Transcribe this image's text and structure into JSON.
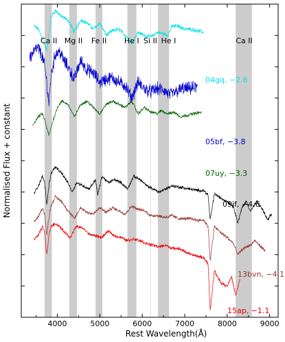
{
  "chart_data": {
    "type": "line",
    "xlabel": "Rest Wavelength(Å)",
    "ylabel": "Normalised Flux + constant",
    "xlim": [
      3150,
      9200
    ],
    "ylim": [
      0,
      10
    ],
    "xticks": [
      4000,
      5000,
      6000,
      7000,
      8000,
      9000
    ],
    "y_tick_labels": false,
    "grid": false,
    "line_annotations": [
      {
        "label": "Ca II",
        "x": 3800
      },
      {
        "label": "Mg II",
        "x": 4380
      },
      {
        "label": "Fe II",
        "x": 4980
      },
      {
        "label": "He I",
        "x": 5750
      },
      {
        "label": "Si II",
        "x": 6190
      },
      {
        "label": "He I",
        "x": 6620
      },
      {
        "label": "Ca II",
        "x": 8400
      }
    ],
    "shaded_bands": [
      [
        3700,
        3870
      ],
      [
        4280,
        4460
      ],
      [
        4900,
        5060
      ],
      [
        5650,
        5860
      ],
      [
        6370,
        6630
      ],
      [
        8200,
        8580
      ]
    ],
    "vline_x": 6200,
    "series": [
      {
        "name": "04gq, −2.6",
        "color": "#00e5e5",
        "noise": 0.05,
        "x": [
          3450,
          3550,
          3650,
          3750,
          3850,
          3950,
          4100,
          4250,
          4400,
          4550,
          4700,
          4850,
          5000,
          5150,
          5300,
          5450,
          5600,
          5750,
          5900,
          6050,
          6200,
          6350,
          6500,
          6600,
          6700,
          6850,
          7000,
          7150,
          7300,
          7450
        ],
        "y": [
          9.3,
          9.2,
          8.9,
          8.5,
          9.6,
          9.8,
          9.6,
          9.5,
          9.1,
          9.5,
          9.4,
          9.2,
          9.4,
          9.0,
          9.15,
          9.2,
          9.0,
          8.75,
          9.1,
          9.0,
          8.95,
          9.1,
          9.05,
          9.0,
          9.3,
          9.3,
          9.2,
          9.2,
          9.15,
          9.1
        ]
      },
      {
        "name": "05bf, −3.8",
        "color": "#0000cc",
        "noise": 0.17,
        "x": [
          3350,
          3450,
          3550,
          3650,
          3700,
          3750,
          3800,
          3850,
          3950,
          4050,
          4150,
          4250,
          4400,
          4550,
          4700,
          4850,
          5000,
          5150,
          5300,
          5450,
          5600,
          5750,
          5900,
          6050,
          6200,
          6350,
          6500,
          6650,
          6800,
          6950,
          7100,
          7300
        ],
        "y": [
          8.3,
          8.5,
          8.6,
          8.3,
          8.0,
          7.5,
          6.8,
          7.7,
          8.4,
          8.5,
          8.2,
          8.0,
          7.6,
          8.2,
          7.9,
          7.8,
          7.5,
          7.6,
          7.65,
          7.5,
          7.4,
          7.0,
          7.5,
          7.3,
          7.2,
          7.3,
          7.25,
          7.1,
          7.2,
          7.3,
          7.3,
          7.35
        ]
      },
      {
        "name": "07uy, −3.3",
        "color": "#006400",
        "noise": 0.04,
        "x": [
          3400,
          3550,
          3650,
          3700,
          3800,
          3900,
          4000,
          4100,
          4250,
          4400,
          4550,
          4700,
          4850,
          5000,
          5150,
          5300,
          5450,
          5600,
          5750,
          5900,
          6050,
          6200,
          6350,
          6450,
          6600,
          6750,
          6900,
          7050,
          7200,
          7400
        ],
        "y": [
          6.1,
          6.4,
          6.5,
          6.3,
          5.8,
          6.3,
          6.7,
          6.9,
          6.8,
          6.4,
          6.8,
          6.9,
          6.7,
          6.5,
          6.8,
          6.9,
          6.8,
          6.7,
          6.9,
          6.5,
          6.7,
          6.55,
          6.5,
          6.6,
          6.5,
          6.55,
          6.4,
          6.45,
          6.5,
          6.55
        ]
      },
      {
        "name": "09jf, −4.6",
        "color": "#000000",
        "noise": 0.04,
        "x": [
          3450,
          3550,
          3650,
          3700,
          3750,
          3800,
          3850,
          3950,
          4100,
          4250,
          4350,
          4450,
          4600,
          4750,
          4900,
          4950,
          5050,
          5200,
          5350,
          5500,
          5650,
          5800,
          5950,
          6100,
          6250,
          6400,
          6550,
          6700,
          6900,
          7100,
          7300,
          7450,
          7550,
          7600,
          7700,
          7850,
          8000,
          8150,
          8250,
          8350,
          8450,
          8550,
          8700,
          8850,
          8950,
          9050
        ],
        "y": [
          3.95,
          4.2,
          4.5,
          4.3,
          3.6,
          4.2,
          4.6,
          4.8,
          4.6,
          4.3,
          4.0,
          4.3,
          4.2,
          4.1,
          4.4,
          3.9,
          4.5,
          4.3,
          4.4,
          4.3,
          4.1,
          4.5,
          4.4,
          4.2,
          4.1,
          4.0,
          4.1,
          4.2,
          4.15,
          4.1,
          4.05,
          4.05,
          3.9,
          3.1,
          3.95,
          3.8,
          3.7,
          3.55,
          3.0,
          3.5,
          3.7,
          3.4,
          3.7,
          3.4,
          3.1,
          3.3
        ]
      },
      {
        "name": "13bvn, −4.1",
        "color": "#993333",
        "noise": 0.04,
        "x": [
          3450,
          3550,
          3650,
          3700,
          3750,
          3800,
          3850,
          3950,
          4100,
          4250,
          4400,
          4550,
          4700,
          4850,
          5000,
          5150,
          5300,
          5450,
          5600,
          5750,
          5900,
          6050,
          6200,
          6350,
          6500,
          6600,
          6700,
          6850,
          7000,
          7150,
          7300,
          7450,
          7550,
          7600,
          7700,
          7850,
          8000,
          8150,
          8250,
          8350,
          8450,
          8550,
          8650,
          8800,
          8900
        ],
        "y": [
          3.05,
          3.2,
          3.5,
          3.3,
          2.6,
          3.2,
          3.55,
          3.85,
          3.7,
          3.4,
          3.15,
          3.5,
          3.35,
          3.3,
          3.5,
          3.35,
          3.5,
          3.4,
          3.3,
          3.55,
          3.45,
          3.4,
          3.25,
          3.25,
          3.2,
          3.2,
          3.25,
          3.15,
          3.15,
          3.15,
          3.1,
          3.1,
          2.9,
          1.8,
          2.9,
          2.7,
          2.55,
          2.35,
          2.0,
          2.15,
          2.25,
          2.3,
          2.45,
          2.25,
          2.1
        ]
      },
      {
        "name": "15ap, −1.1",
        "color": "#ee0000",
        "noise": 0.04,
        "x": [
          3450,
          3550,
          3650,
          3700,
          3750,
          3800,
          3850,
          3950,
          4050,
          4150,
          4300,
          4450,
          4600,
          4750,
          4900,
          5050,
          5200,
          5350,
          5500,
          5650,
          5800,
          5950,
          6100,
          6250,
          6400,
          6550,
          6700,
          6850,
          7000,
          7150,
          7300,
          7450,
          7550,
          7600,
          7700,
          7850,
          8000,
          8100,
          8200,
          8300
        ],
        "y": [
          2.5,
          2.6,
          2.9,
          2.7,
          2.0,
          2.6,
          2.9,
          3.0,
          2.9,
          2.75,
          2.55,
          2.9,
          2.85,
          2.65,
          2.6,
          2.55,
          2.75,
          2.6,
          2.55,
          2.45,
          2.5,
          2.45,
          2.35,
          2.3,
          2.25,
          2.3,
          2.2,
          2.2,
          2.1,
          2.0,
          1.95,
          1.9,
          1.7,
          0.2,
          1.5,
          1.1,
          1.0,
          1.3,
          0.7,
          1.2
        ]
      }
    ]
  }
}
